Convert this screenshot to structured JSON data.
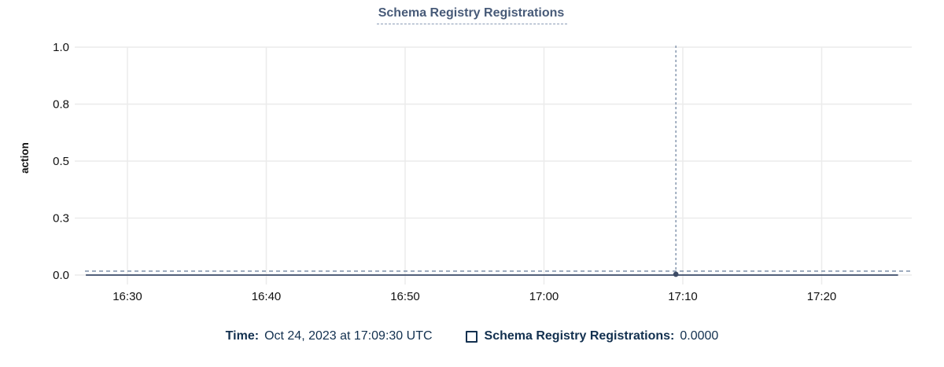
{
  "chart": {
    "title": "Schema Registry Registrations",
    "y_axis_title": "action"
  },
  "chart_data": {
    "type": "line",
    "title": "Schema Registry Registrations",
    "xlabel": "",
    "ylabel": "action",
    "ylim": [
      0,
      1
    ],
    "grid": true,
    "legend_position": "bottom",
    "x_ticks": [
      "16:30",
      "16:40",
      "16:50",
      "17:00",
      "17:10",
      "17:20"
    ],
    "y_ticks": [
      {
        "label": "1.0",
        "value": 1.0
      },
      {
        "label": "0.8",
        "value": 0.75
      },
      {
        "label": "0.5",
        "value": 0.5
      },
      {
        "label": "0.3",
        "value": 0.25
      },
      {
        "label": "0.0",
        "value": 0.0
      }
    ],
    "series": [
      {
        "name": "Schema Registry Registrations",
        "color": "#3b4a68",
        "points": [
          {
            "time": "16:27:00",
            "value": 0
          },
          {
            "time": "17:09:30",
            "value": 0
          },
          {
            "time": "17:25:30",
            "value": 0
          }
        ]
      }
    ],
    "crosshair": {
      "time": "17:09:30",
      "value": 0,
      "value_label": "0.0000"
    }
  },
  "tooltip": {
    "time_label": "Time:",
    "time_value": "Oct 24, 2023 at 17:09:30 UTC",
    "series_label": "Schema Registry Registrations:",
    "series_value": "0.0000"
  },
  "colors": {
    "title": "#475a78",
    "title_underline": "#8b9cb6",
    "grid": "#ebebeb",
    "axis_text": "#111111",
    "line": "#3b4a68",
    "crosshair": "#7e91aa",
    "point": "#3e4c66",
    "legend_text": "#12304f"
  }
}
